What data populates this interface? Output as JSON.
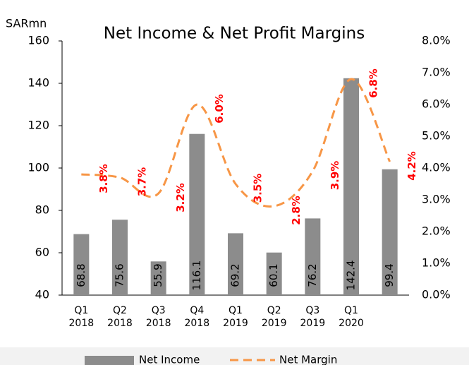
{
  "chart_data": {
    "type": "bar",
    "title": "Net Income & Net Profit Margins",
    "y_axis_label": "SARmn",
    "categories": [
      [
        "Q1",
        "2018"
      ],
      [
        "Q2",
        "2018"
      ],
      [
        "Q3",
        "2018"
      ],
      [
        "Q4",
        "2018"
      ],
      [
        "Q1",
        "2019"
      ],
      [
        "Q2",
        "2019"
      ],
      [
        "Q3",
        "2019"
      ],
      [
        "Q1",
        "2020"
      ],
      null
    ],
    "series": [
      {
        "name": "Net Income",
        "type": "bar",
        "color": "#8c8c8c",
        "values": [
          68.8,
          75.6,
          55.9,
          116.1,
          69.2,
          60.1,
          76.2,
          142.4,
          99.4
        ]
      },
      {
        "name": "Net Margin",
        "type": "line",
        "axis": "y2",
        "color": "#f79646",
        "values": [
          3.8,
          3.7,
          3.2,
          6.0,
          3.5,
          2.8,
          3.9,
          6.8,
          4.2
        ],
        "value_labels": [
          "3.8%",
          "3.7%",
          "3.2%",
          "6.0%",
          "3.5%",
          "2.8%",
          "3.9%",
          "6.8%",
          "4.2%"
        ]
      }
    ],
    "ylim": [
      40,
      160
    ],
    "yticks": [
      40,
      60,
      80,
      100,
      120,
      140,
      160
    ],
    "y2lim": [
      0,
      8
    ],
    "y2ticks": [
      {
        "value": 0,
        "label": "0.0%"
      },
      {
        "value": 1,
        "label": "1.0%"
      },
      {
        "value": 2,
        "label": "2.0%"
      },
      {
        "value": 3,
        "label": "3.0%"
      },
      {
        "value": 4,
        "label": "4.0%"
      },
      {
        "value": 5,
        "label": "5.0%"
      },
      {
        "value": 6,
        "label": "6.0%"
      },
      {
        "value": 7,
        "label": "7.0%"
      },
      {
        "value": 8,
        "label": "8.0%"
      }
    ],
    "legend": "bottom"
  }
}
